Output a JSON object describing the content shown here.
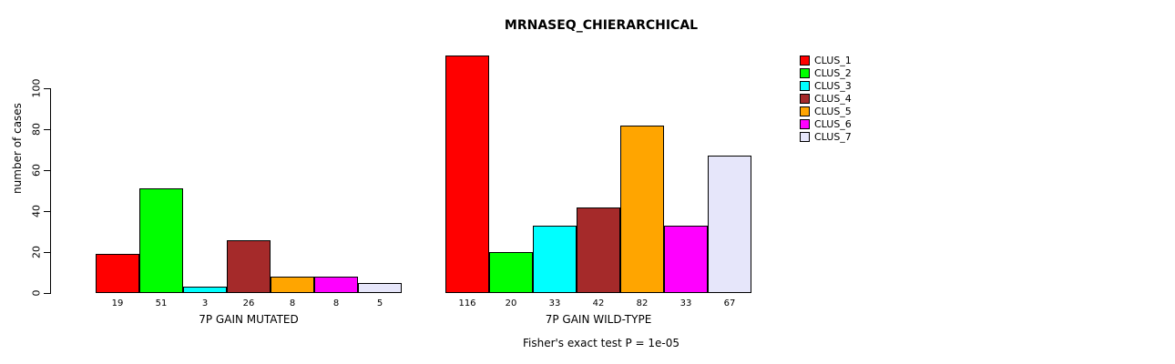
{
  "chart_data": {
    "type": "bar",
    "title": "MRNASEQ_CHIERARCHICAL",
    "ylabel": "number of cases",
    "ylim": [
      0,
      120
    ],
    "yticks": [
      0,
      20,
      40,
      60,
      80,
      100
    ],
    "grid": false,
    "legend_position": "right",
    "series_names": [
      "CLUS_1",
      "CLUS_2",
      "CLUS_3",
      "CLUS_4",
      "CLUS_5",
      "CLUS_6",
      "CLUS_7"
    ],
    "colors": [
      "#FF0000",
      "#00FF00",
      "#00FFFF",
      "#A52A2A",
      "#FFA500",
      "#FF00FF",
      "#E6E6FA"
    ],
    "groups": [
      {
        "label": "7P GAIN MUTATED",
        "values": [
          19,
          51,
          3,
          26,
          8,
          8,
          5
        ]
      },
      {
        "label": "7P GAIN WILD-TYPE",
        "values": [
          116,
          20,
          33,
          42,
          82,
          33,
          67
        ]
      }
    ],
    "annotation": "Fisher's exact test P = 1e-05"
  }
}
